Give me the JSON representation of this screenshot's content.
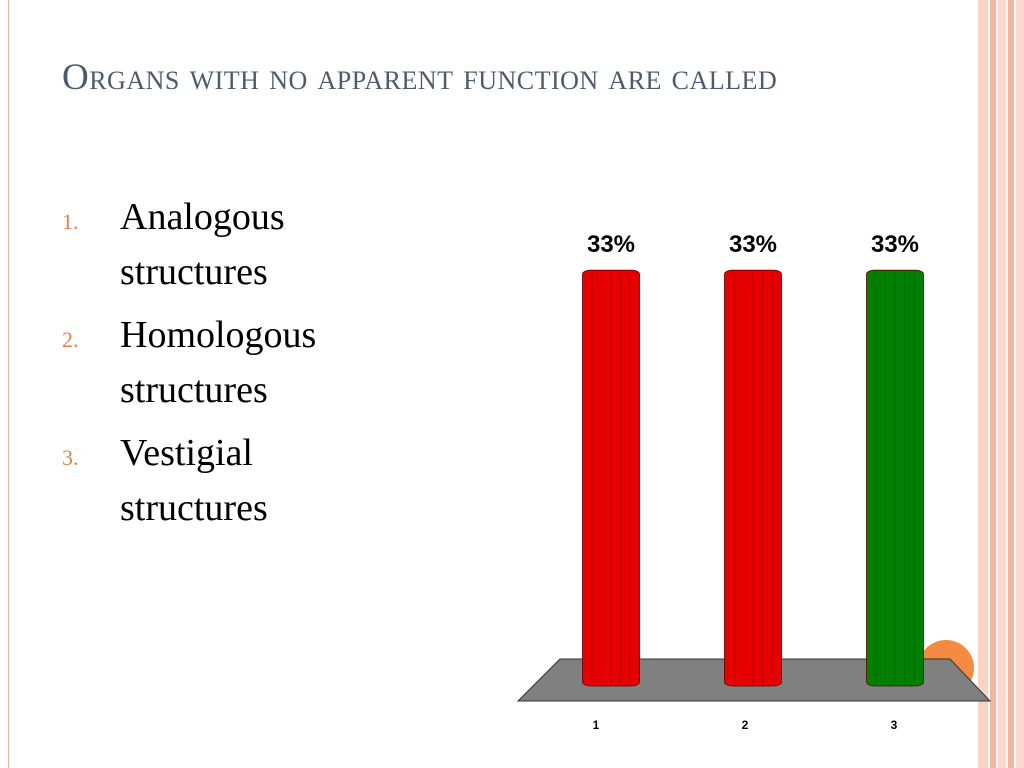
{
  "slide": {
    "title": "Organs with no apparent function are called",
    "option_numbers": [
      "1.",
      "2.",
      "3."
    ],
    "options": [
      "Analogous structures",
      "Homologous structures",
      "Vestigial structures"
    ]
  },
  "chart_data": {
    "type": "bar",
    "categories": [
      "1",
      "2",
      "3"
    ],
    "values": [
      33,
      33,
      33
    ],
    "value_labels": [
      "33%",
      "33%",
      "33%"
    ],
    "colors": [
      "#e60000",
      "#e60000",
      "#008000"
    ]
  }
}
